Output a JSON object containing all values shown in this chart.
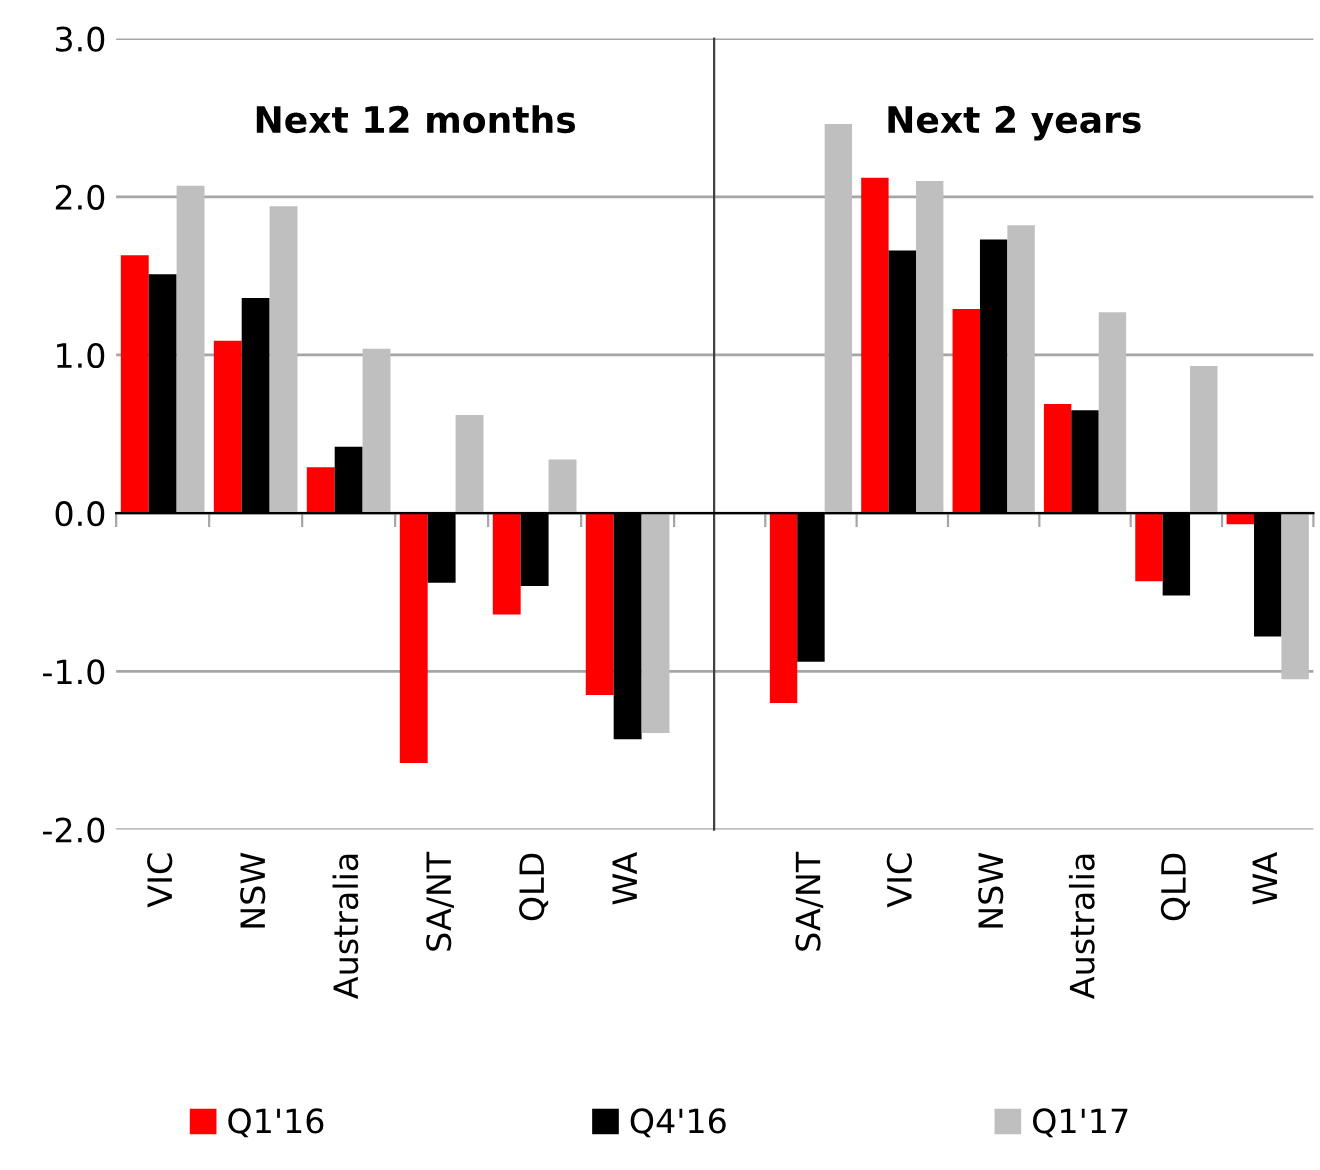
{
  "chart_data": [
    {
      "type": "bar",
      "title": "Next 12 months",
      "categories": [
        "VIC",
        "NSW",
        "Australia",
        "SA/NT",
        "QLD",
        "WA"
      ],
      "series": [
        {
          "name": "Q1'16",
          "color": "#ff0000",
          "values": [
            1.63,
            1.09,
            0.29,
            -1.58,
            -0.64,
            -1.15
          ]
        },
        {
          "name": "Q4'16",
          "color": "#000000",
          "values": [
            1.51,
            1.36,
            0.42,
            -0.44,
            -0.46,
            -1.43
          ]
        },
        {
          "name": "Q1'17",
          "color": "#bfbfbf",
          "values": [
            2.07,
            1.94,
            1.04,
            0.62,
            0.34,
            -1.39
          ]
        }
      ],
      "ylim": [
        -2,
        3
      ],
      "yticks": [
        {
          "value": -2,
          "label": "-2.0"
        },
        {
          "value": -1,
          "label": "-1.0"
        },
        {
          "value": 0,
          "label": "0.0"
        },
        {
          "value": 1,
          "label": "1.0"
        },
        {
          "value": 2,
          "label": "2.0"
        },
        {
          "value": 3,
          "label": "3.0"
        }
      ],
      "grid": "y",
      "legend": "bottom"
    },
    {
      "type": "bar",
      "title": "Next 2 years",
      "categories": [
        "SA/NT",
        "VIC",
        "NSW",
        "Australia",
        "QLD",
        "WA"
      ],
      "series": [
        {
          "color": "#ff0000",
          "values": [
            -1.2,
            2.12,
            1.29,
            0.69,
            -0.43,
            -0.07
          ]
        },
        {
          "color": "#000000",
          "values": [
            -0.94,
            1.66,
            1.73,
            0.65,
            -0.52,
            -0.78
          ]
        },
        {
          "color": "#bfbfbf",
          "values": [
            2.46,
            2.1,
            1.82,
            1.27,
            0.93,
            -1.05
          ]
        }
      ],
      "ylim": [
        -2,
        3
      ],
      "yticks": [
        -2,
        -1,
        0,
        1,
        2,
        3
      ],
      "grid": "y",
      "legend": "bottom",
      "tick_labels": "x"
    }
  ]
}
